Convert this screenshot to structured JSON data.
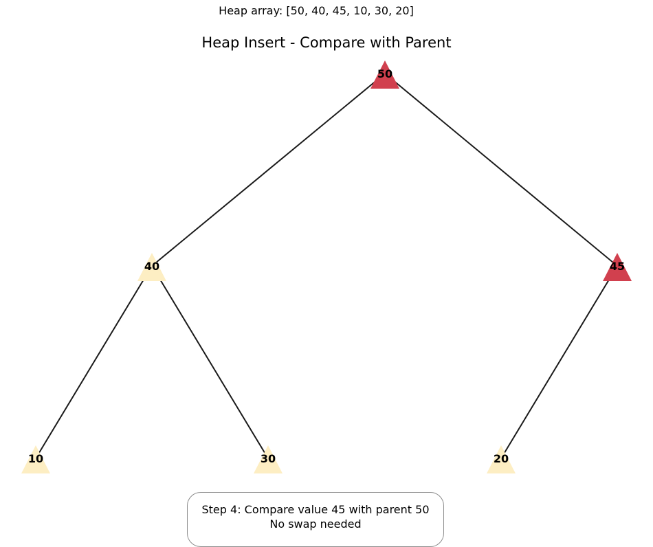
{
  "caption": "Heap array: [50, 40, 45, 10, 30, 20]",
  "title": "Heap Insert - Compare with Parent",
  "status": {
    "line1": "Step 4: Compare value 45 with parent 50",
    "line2": "No swap needed"
  },
  "colors": {
    "highlight": "#d1404e",
    "normal": "#fdeec3",
    "edge": "#1a1a1a"
  },
  "nodes": [
    {
      "id": "n0",
      "label": "50",
      "highlighted": true
    },
    {
      "id": "n1",
      "label": "40",
      "highlighted": false
    },
    {
      "id": "n2",
      "label": "45",
      "highlighted": true
    },
    {
      "id": "n3",
      "label": "10",
      "highlighted": false
    },
    {
      "id": "n4",
      "label": "30",
      "highlighted": false
    },
    {
      "id": "n5",
      "label": "20",
      "highlighted": false
    }
  ],
  "edges": [
    {
      "from": "n0",
      "to": "n1"
    },
    {
      "from": "n0",
      "to": "n2"
    },
    {
      "from": "n1",
      "to": "n3"
    },
    {
      "from": "n1",
      "to": "n4"
    },
    {
      "from": "n2",
      "to": "n5"
    }
  ]
}
